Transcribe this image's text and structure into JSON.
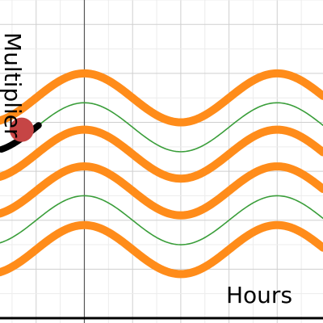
{
  "chart_data": {
    "type": "line",
    "title": "",
    "xlabel": "Hours",
    "ylabel": "Multiplier",
    "xlim": [
      -1.75,
      4.95
    ],
    "ylim": [
      -1.1,
      5.5
    ],
    "grid": true,
    "curve_formula": "y = c + 0.5*cos(pi*x/2)",
    "series": [
      {
        "offset": 3.5,
        "style": "thick",
        "color": "#ff8c1a"
      },
      {
        "offset": 2.9,
        "style": "thin",
        "color": "#3a9e3a"
      },
      {
        "offset": 2.35,
        "style": "thick",
        "color": "#ff8c1a"
      },
      {
        "offset": 1.6,
        "style": "thick",
        "color": "#ff8c1a"
      },
      {
        "offset": 1.0,
        "style": "thin",
        "color": "#3a9e3a"
      },
      {
        "offset": 0.4,
        "style": "thick",
        "color": "#ff8c1a"
      }
    ],
    "highlight_segment": {
      "x": [
        -1.72,
        -0.95
      ],
      "offset": 2.9,
      "color": "#000000"
    },
    "point": {
      "x": -1.3,
      "y": 2.85,
      "color": "#c64545"
    }
  }
}
